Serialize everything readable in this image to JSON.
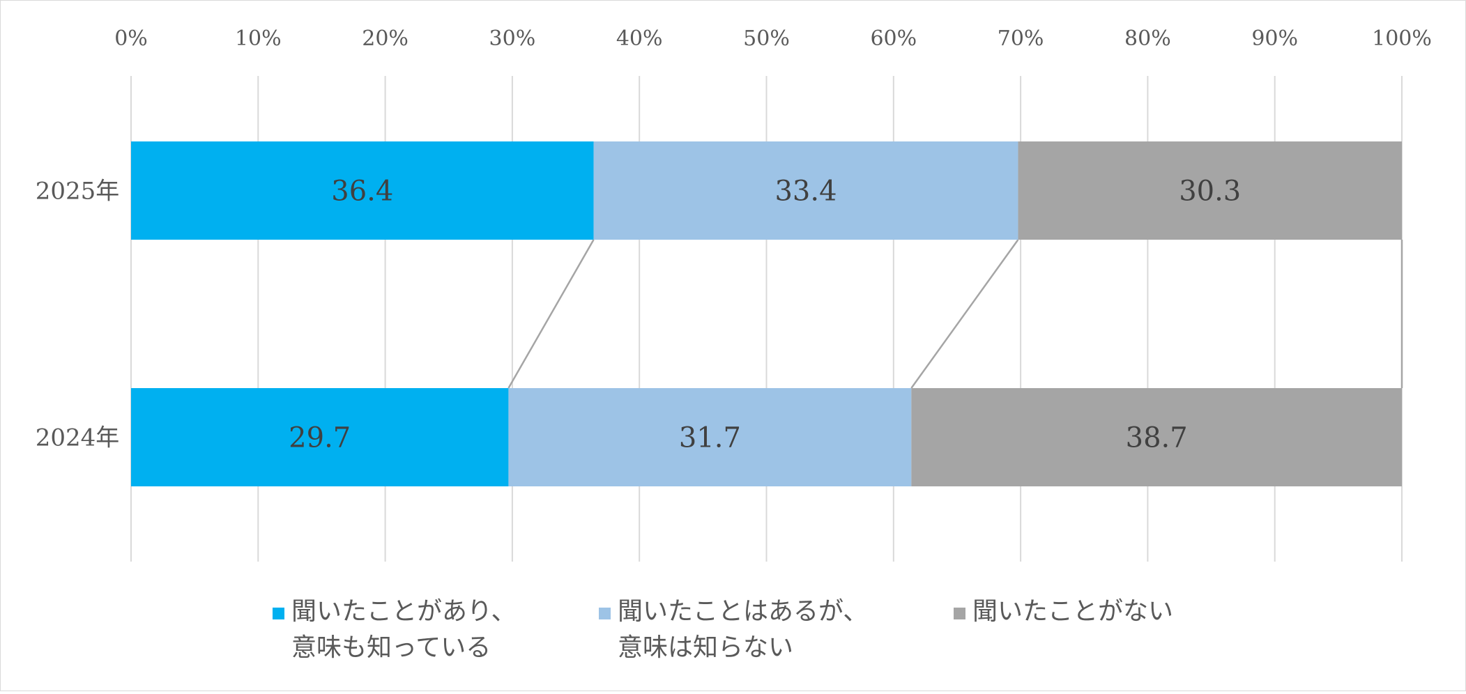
{
  "chart_data": {
    "type": "bar",
    "orientation": "horizontal",
    "stacked": "percent",
    "xlim": [
      0,
      100
    ],
    "x_ticks": [
      "0%",
      "10%",
      "20%",
      "30%",
      "40%",
      "50%",
      "60%",
      "70%",
      "80%",
      "90%",
      "100%"
    ],
    "grid": true,
    "series_lines": true,
    "legend_position": "bottom",
    "categories": [
      "2025年",
      "2024年"
    ],
    "series": [
      {
        "name": "聞いたことがあり、意味も知っている",
        "legend_lines": [
          "聞いたことがあり、",
          "意味も知っている"
        ],
        "color": "#00b0f0",
        "values": [
          36.4,
          29.7
        ]
      },
      {
        "name": "聞いたことはあるが、意味は知らない",
        "legend_lines": [
          "聞いたことはあるが、",
          "意味は知らない"
        ],
        "color": "#9dc3e6",
        "values": [
          33.4,
          31.7
        ]
      },
      {
        "name": "聞いたことがない",
        "legend_lines": [
          "聞いたことがない"
        ],
        "color": "#a5a5a5",
        "values": [
          30.3,
          38.7
        ]
      }
    ]
  }
}
